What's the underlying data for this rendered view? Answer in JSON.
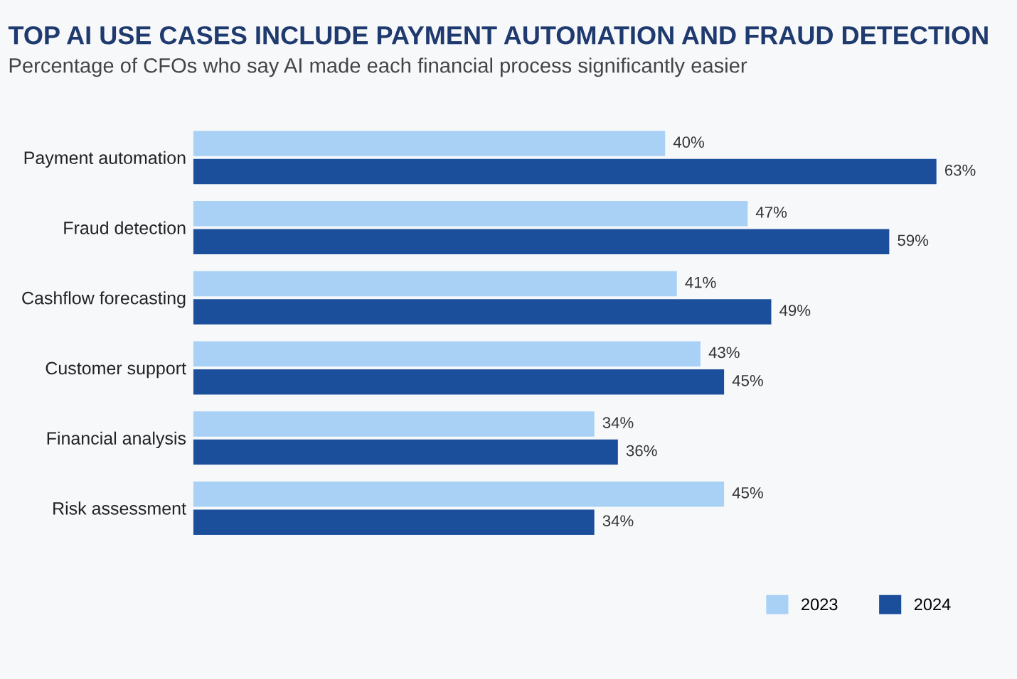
{
  "chart_data": {
    "type": "bar",
    "orientation": "horizontal",
    "title": "TOP AI USE CASES INCLUDE PAYMENT AUTOMATION AND FRAUD DETECTION",
    "subtitle": "Percentage of CFOs who say AI made each financial process significantly easier",
    "categories": [
      "Payment automation",
      "Fraud detection",
      "Cashflow forecasting",
      "Customer support",
      "Financial analysis",
      "Risk assessment"
    ],
    "series": [
      {
        "name": "2023",
        "color": "#a9d1f5",
        "values": [
          40,
          47,
          41,
          43,
          34,
          45
        ],
        "value_labels": [
          "40%",
          "47%",
          "41%",
          "43%",
          "34%",
          "45%"
        ]
      },
      {
        "name": "2024",
        "color": "#1b4f9c",
        "values": [
          63,
          59,
          49,
          45,
          36,
          34
        ],
        "value_labels": [
          "63%",
          "59%",
          "49%",
          "45%",
          "36%",
          "34%"
        ]
      }
    ],
    "grid": false,
    "legend": "bottom right",
    "tick_labels": "y"
  }
}
